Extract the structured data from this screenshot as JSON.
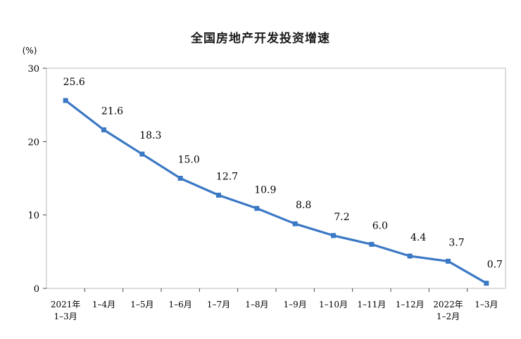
{
  "chart_data": {
    "type": "line",
    "title": "全国房地产开发投资增速",
    "ylabel": "(%)",
    "xlabel": "",
    "ylim": [
      0,
      30
    ],
    "yticks": [
      "0",
      "10",
      "20",
      "30"
    ],
    "categories": [
      [
        "2021年",
        "1–3月"
      ],
      [
        "1–4月"
      ],
      [
        "1–5月"
      ],
      [
        "1–6月"
      ],
      [
        "1–7月"
      ],
      [
        "1–8月"
      ],
      [
        "1–9月"
      ],
      [
        "1–10月"
      ],
      [
        "1–11月"
      ],
      [
        "1–12月"
      ],
      [
        "2022年",
        "1–2月"
      ],
      [
        "1–3月"
      ]
    ],
    "values": [
      25.6,
      21.6,
      18.3,
      15.0,
      12.7,
      10.9,
      8.8,
      7.2,
      6.0,
      4.4,
      3.7,
      0.7
    ],
    "labels": [
      "25.6",
      "21.6",
      "18.3",
      "15.0",
      "12.7",
      "10.9",
      "8.8",
      "7.2",
      "6.0",
      "4.4",
      "3.7",
      "0.7"
    ],
    "grid": false,
    "line_color": "#3a78c4",
    "marker": "square"
  }
}
